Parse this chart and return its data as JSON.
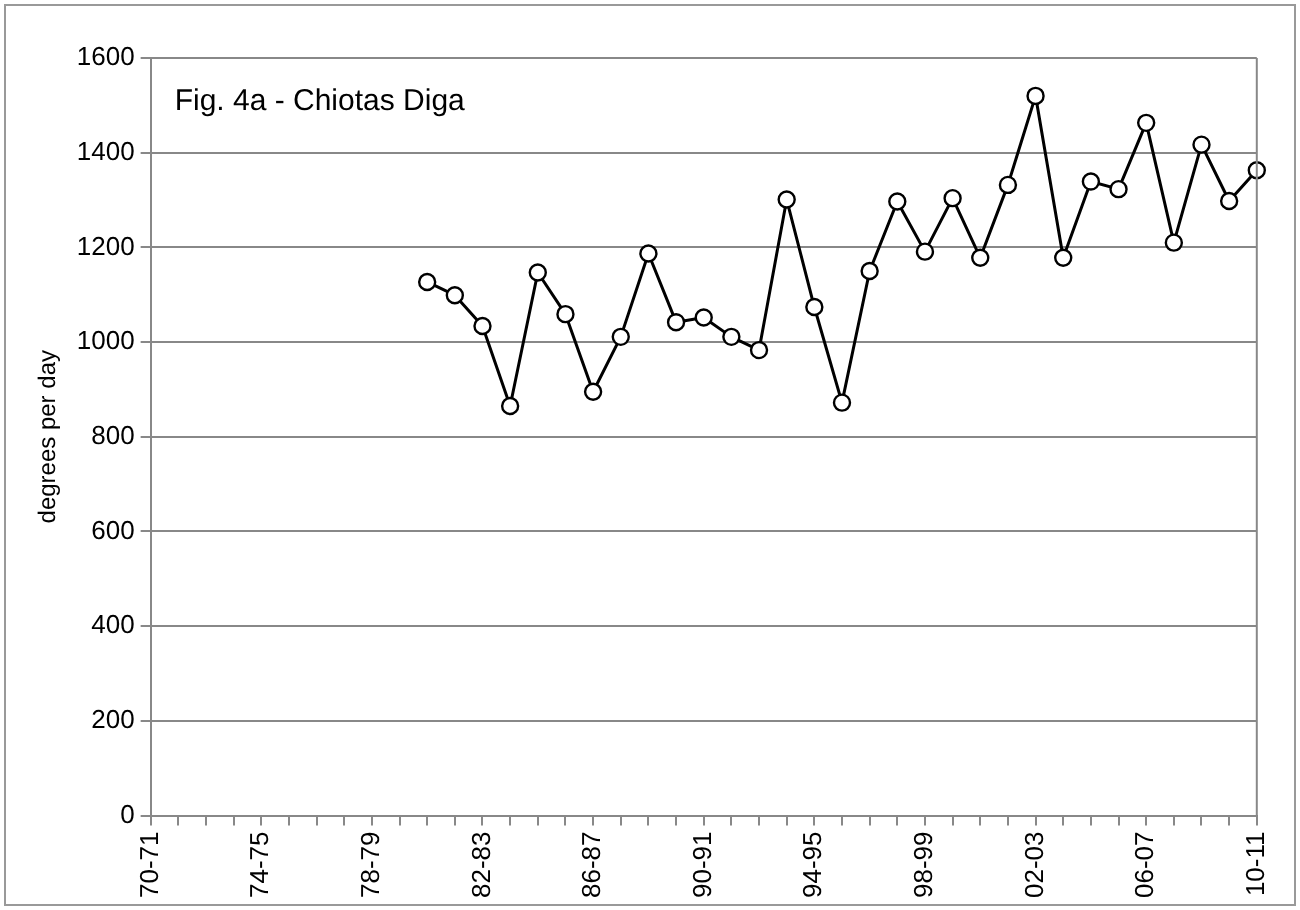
{
  "chart_data": {
    "type": "line",
    "title": "Fig. 4a - Chiotas Diga",
    "ylabel": "degrees per day",
    "categories": [
      "70-71",
      null,
      null,
      null,
      "74-75",
      null,
      null,
      null,
      "78-79",
      null,
      null,
      null,
      "82-83",
      null,
      null,
      null,
      "86-87",
      null,
      null,
      null,
      "90-91",
      null,
      null,
      null,
      "94-95",
      null,
      null,
      null,
      "98-99",
      null,
      null,
      null,
      "02-03",
      null,
      null,
      null,
      "06-07",
      null,
      null,
      null,
      "10-11"
    ],
    "series": [
      {
        "color": "#000000",
        "values": [
          null,
          null,
          null,
          null,
          null,
          null,
          null,
          null,
          null,
          null,
          1127,
          1099,
          1034,
          865,
          1147,
          1059,
          895,
          1011,
          1187,
          1042,
          1052,
          1011,
          983,
          1301,
          1074,
          872,
          1150,
          1297,
          1191,
          1304,
          1178,
          1332,
          1520,
          1178,
          1339,
          1323,
          1463,
          1210,
          1417,
          1298,
          1363
        ]
      }
    ],
    "ylim": [
      0,
      1600
    ],
    "yticks": [
      0,
      200,
      400,
      600,
      800,
      1000,
      1200,
      1400,
      1600
    ],
    "grid": "y",
    "legend": false,
    "marker": "circle",
    "line_style": "solid"
  }
}
